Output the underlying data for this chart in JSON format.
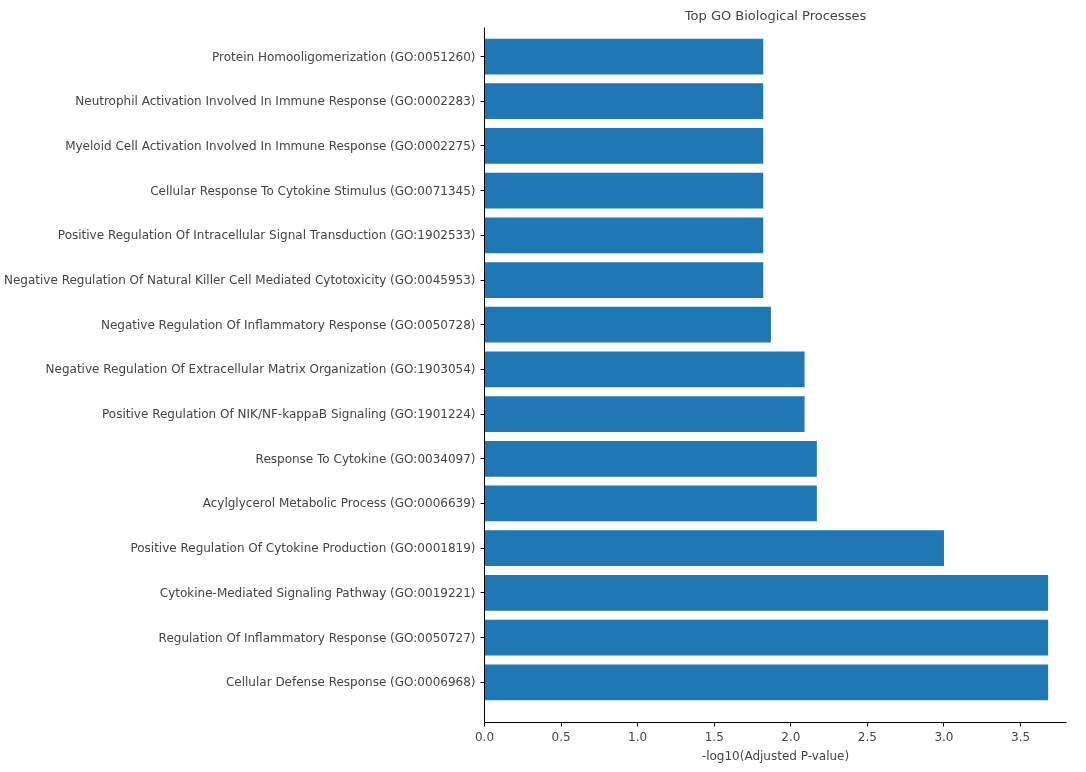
{
  "chart_data": {
    "type": "bar",
    "orientation": "horizontal",
    "title": "Top GO Biological Processes",
    "xlabel": "-log10(Adjusted P-value)",
    "categories": [
      "Protein Homooligomerization (GO:0051260)",
      "Neutrophil Activation Involved In Immune Response (GO:0002283)",
      "Myeloid Cell Activation Involved In Immune Response (GO:0002275)",
      "Cellular Response To Cytokine Stimulus (GO:0071345)",
      "Positive Regulation Of Intracellular Signal Transduction (GO:1902533)",
      "Negative Regulation Of Natural Killer Cell Mediated Cytotoxicity (GO:0045953)",
      "Negative Regulation Of Inflammatory Response (GO:0050728)",
      "Negative Regulation Of Extracellular Matrix Organization (GO:1903054)",
      "Positive Regulation Of NIK/NF-kappaB Signaling (GO:1901224)",
      "Response To Cytokine (GO:0034097)",
      "Acylglycerol Metabolic Process (GO:0006639)",
      "Positive Regulation Of Cytokine Production (GO:0001819)",
      "Cytokine-Mediated Signaling Pathway (GO:0019221)",
      "Regulation Of Inflammatory Response (GO:0050727)",
      "Cellular Defense Response (GO:0006968)"
    ],
    "values": [
      1.82,
      1.82,
      1.82,
      1.82,
      1.82,
      1.82,
      1.87,
      2.09,
      2.09,
      2.17,
      2.17,
      3.0,
      3.68,
      3.68,
      3.68
    ],
    "color": "#1f77b4",
    "xlim": [
      0,
      3.8
    ],
    "xticks": [
      {
        "value": 0,
        "label": "0.0"
      },
      {
        "value": 0.5,
        "label": "0.5"
      },
      {
        "value": 1,
        "label": "1.0"
      },
      {
        "value": 1.5,
        "label": "1.5"
      },
      {
        "value": 2,
        "label": "2.0"
      },
      {
        "value": 2.5,
        "label": "2.5"
      },
      {
        "value": 3,
        "label": "3.0"
      },
      {
        "value": 3.5,
        "label": "3.5"
      }
    ],
    "grid": false
  }
}
